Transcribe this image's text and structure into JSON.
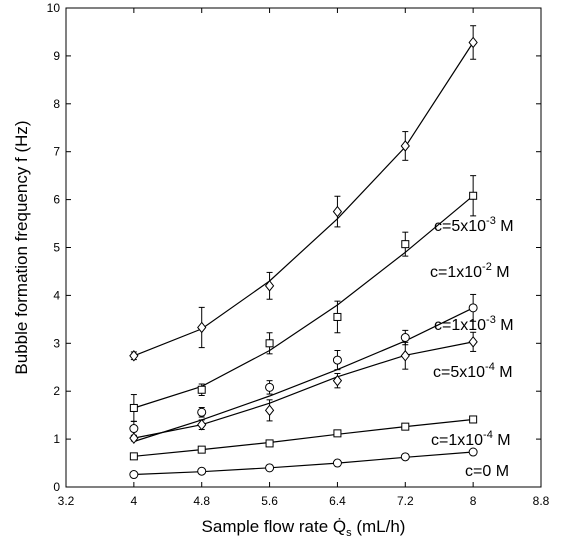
{
  "chart_data": {
    "type": "line",
    "xlabel": "Sample flow rate Q̇s (mL/h)",
    "xlabel_parts": {
      "main": "Sample flow rate ",
      "symbol": "Q̇",
      "subscript": "s",
      "unit": " (mL/h)"
    },
    "ylabel": "Bubble formation frequency f (Hz)",
    "xlim": [
      3.2,
      8.8
    ],
    "ylim": [
      0,
      10
    ],
    "xticks": [
      "3.2",
      "4",
      "4.8",
      "5.6",
      "6.4",
      "7.2",
      "8",
      "8.8"
    ],
    "yticks": [
      "0",
      "1",
      "2",
      "3",
      "4",
      "5",
      "6",
      "7",
      "8",
      "9",
      "10"
    ],
    "grid": false,
    "x": [
      4,
      4.8,
      5.6,
      6.4,
      7.2,
      8
    ],
    "series": [
      {
        "name": "c=1x10-2 M",
        "label_base": "c=1x10",
        "label_exp": "-2",
        "label_unit": " M",
        "marker": "diamond",
        "values": [
          2.74,
          3.33,
          4.2,
          5.75,
          7.12,
          9.28
        ],
        "errors": [
          0.08,
          0.42,
          0.28,
          0.32,
          0.3,
          0.35
        ],
        "fit": [
          2.74,
          3.3,
          4.3,
          5.6,
          7.1,
          9.28
        ]
      },
      {
        "name": "c=5x10-3 M",
        "label_base": "c=5x10",
        "label_exp": "-3",
        "label_unit": " M",
        "marker": "square",
        "values": [
          1.65,
          2.03,
          3.0,
          3.55,
          5.07,
          6.08
        ],
        "errors": [
          0.28,
          0.12,
          0.22,
          0.33,
          0.25,
          0.42
        ],
        "fit": [
          1.65,
          2.1,
          2.85,
          3.8,
          4.9,
          6.08
        ]
      },
      {
        "name": "c=1x10-3 M",
        "label_base": "c=1x10",
        "label_exp": "-3",
        "label_unit": " M",
        "marker": "circle",
        "values": [
          1.22,
          1.56,
          2.08,
          2.65,
          3.12,
          3.74
        ],
        "errors": [
          0.15,
          0.1,
          0.14,
          0.2,
          0.15,
          0.28
        ],
        "fit": [
          0.95,
          1.4,
          1.9,
          2.45,
          3.05,
          3.74
        ]
      },
      {
        "name": "c=5x10-4 M",
        "label_base": "c=5x10",
        "label_exp": "-4",
        "label_unit": " M",
        "marker": "diamond",
        "values": [
          1.02,
          1.3,
          1.6,
          2.22,
          2.74,
          3.03
        ],
        "errors": [
          0.06,
          0.1,
          0.22,
          0.15,
          0.28,
          0.2
        ],
        "fit": [
          1.02,
          1.3,
          1.75,
          2.3,
          2.75,
          3.03
        ]
      },
      {
        "name": "c=1x10-4 M",
        "label_base": "c=1x10",
        "label_exp": "-4",
        "label_unit": " M",
        "marker": "square",
        "values": [
          0.64,
          0.78,
          0.91,
          1.12,
          1.26,
          1.41
        ],
        "errors": [
          0.04,
          0.05,
          0.05,
          0.06,
          0.05,
          0.07
        ],
        "fit": [
          0.64,
          0.78,
          0.93,
          1.1,
          1.26,
          1.41
        ]
      },
      {
        "name": "c=0 M",
        "label_base": "c=0",
        "label_exp": "",
        "label_unit": " M",
        "marker": "circle",
        "values": [
          0.26,
          0.33,
          0.4,
          0.5,
          0.63,
          0.73
        ],
        "errors": [
          0.03,
          0.03,
          0.04,
          0.04,
          0.04,
          0.05
        ],
        "fit": [
          0.26,
          0.32,
          0.4,
          0.5,
          0.62,
          0.73
        ]
      }
    ]
  }
}
